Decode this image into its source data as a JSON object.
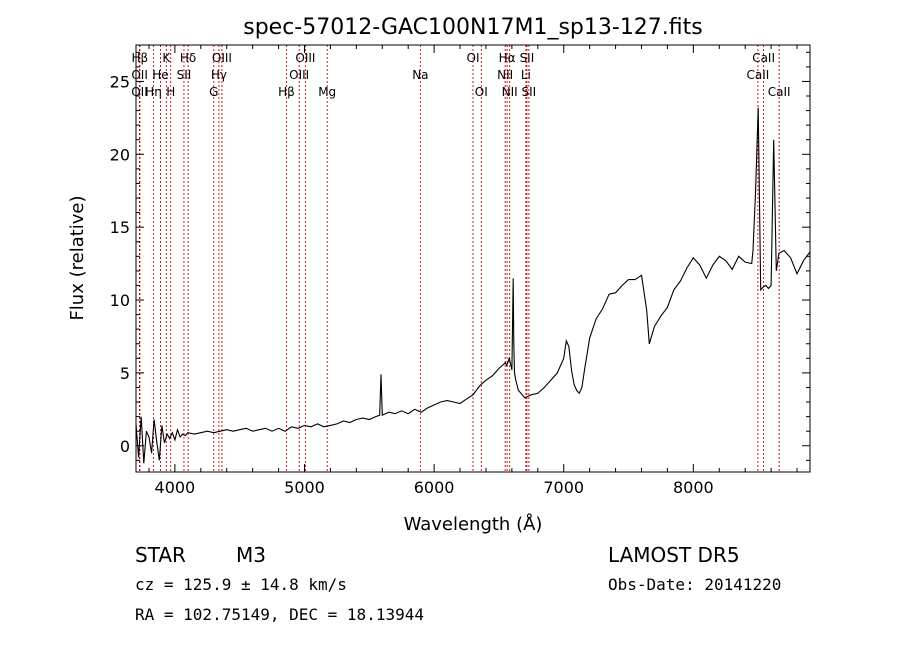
{
  "chart_data": {
    "type": "line",
    "title": "spec-57012-GAC100N17M1_sp13-127.fits",
    "xlabel": "Wavelength (Å)",
    "ylabel": "Flux (relative)",
    "xlim": [
      3700,
      8900
    ],
    "ylim": [
      -1.8,
      27.5
    ],
    "x_ticks": [
      4000,
      5000,
      6000,
      7000,
      8000
    ],
    "y_ticks": [
      0,
      5,
      10,
      15,
      20,
      25
    ],
    "grid": false,
    "series": [
      {
        "color": "#000000",
        "x": [
          3700,
          3720,
          3740,
          3760,
          3780,
          3800,
          3820,
          3840,
          3860,
          3880,
          3900,
          3920,
          3940,
          3960,
          3980,
          4000,
          4020,
          4040,
          4060,
          4080,
          4100,
          4150,
          4200,
          4250,
          4300,
          4350,
          4400,
          4450,
          4500,
          4550,
          4600,
          4650,
          4700,
          4750,
          4800,
          4850,
          4900,
          4950,
          5000,
          5050,
          5100,
          5150,
          5200,
          5250,
          5300,
          5350,
          5400,
          5450,
          5500,
          5550,
          5580,
          5590,
          5600,
          5650,
          5700,
          5750,
          5800,
          5850,
          5900,
          5950,
          6000,
          6050,
          6100,
          6150,
          6200,
          6250,
          6300,
          6350,
          6400,
          6450,
          6500,
          6550,
          6560,
          6580,
          6600,
          6610,
          6615,
          6620,
          6630,
          6650,
          6700,
          6750,
          6800,
          6850,
          6900,
          6950,
          7000,
          7020,
          7040,
          7060,
          7080,
          7100,
          7120,
          7140,
          7160,
          7200,
          7250,
          7300,
          7350,
          7400,
          7450,
          7500,
          7550,
          7600,
          7620,
          7640,
          7660,
          7700,
          7750,
          7800,
          7850,
          7900,
          7950,
          8000,
          8050,
          8100,
          8150,
          8200,
          8250,
          8300,
          8350,
          8400,
          8450,
          8460,
          8480,
          8500,
          8520,
          8540,
          8560,
          8580,
          8600,
          8620,
          8640,
          8660,
          8700,
          8750,
          8800,
          8850,
          8900
        ],
        "y": [
          1.5,
          -0.8,
          2.0,
          -1.2,
          1.0,
          0.6,
          -0.5,
          1.8,
          0.3,
          -1.0,
          1.4,
          0.2,
          0.8,
          0.5,
          0.9,
          0.4,
          1.1,
          0.6,
          0.8,
          0.7,
          0.9,
          0.8,
          0.9,
          1.0,
          0.9,
          1.0,
          1.1,
          1.0,
          1.1,
          1.2,
          1.0,
          1.1,
          1.2,
          1.0,
          1.2,
          1.0,
          1.3,
          1.2,
          1.4,
          1.3,
          1.5,
          1.3,
          1.4,
          1.5,
          1.7,
          1.6,
          1.8,
          1.9,
          1.8,
          2.0,
          2.1,
          4.9,
          2.1,
          2.3,
          2.2,
          2.4,
          2.2,
          2.5,
          2.3,
          2.6,
          2.8,
          3.0,
          3.1,
          3.0,
          2.9,
          3.2,
          3.5,
          4.1,
          4.5,
          4.8,
          5.3,
          5.7,
          5.5,
          6.0,
          5.2,
          11.5,
          7.0,
          5.0,
          4.5,
          3.8,
          3.3,
          3.5,
          3.6,
          4.0,
          4.5,
          5.0,
          6.0,
          7.2,
          6.8,
          5.2,
          4.2,
          3.8,
          3.6,
          4.0,
          5.2,
          7.4,
          8.7,
          9.4,
          10.4,
          10.5,
          11.0,
          11.4,
          11.4,
          11.7,
          10.5,
          9.3,
          7.0,
          8.2,
          8.9,
          9.5,
          10.7,
          11.3,
          12.2,
          12.9,
          12.4,
          11.5,
          12.4,
          13.0,
          12.7,
          12.1,
          13.0,
          12.6,
          12.5,
          13.4,
          17.5,
          23.2,
          10.7,
          10.9,
          11.0,
          10.8,
          11.0,
          21.0,
          12.0,
          13.2,
          13.4,
          12.9,
          11.8,
          12.7,
          13.3
        ]
      }
    ],
    "line_markers": [
      {
        "label": "Hβ",
        "lambda": 3730,
        "row": 1
      },
      {
        "label": "OII",
        "lambda": 3728,
        "row": 2
      },
      {
        "label": "OII",
        "lambda": 3727,
        "row": 3
      },
      {
        "label": "Hη",
        "lambda": 3835,
        "row": 3
      },
      {
        "label": "K",
        "lambda": 3934,
        "row": 1
      },
      {
        "label": "He",
        "lambda": 3889,
        "row": 2
      },
      {
        "label": "SII",
        "lambda": 4070,
        "row": 2
      },
      {
        "label": "H",
        "lambda": 3968,
        "row": 3
      },
      {
        "label": "Hδ",
        "lambda": 4102,
        "row": 1
      },
      {
        "label": "OIII",
        "lambda": 4363,
        "row": 1
      },
      {
        "label": "Hγ",
        "lambda": 4340,
        "row": 2
      },
      {
        "label": "G",
        "lambda": 4300,
        "row": 3
      },
      {
        "label": "OIII",
        "lambda": 5007,
        "row": 1
      },
      {
        "label": "OIII",
        "lambda": 4959,
        "row": 2
      },
      {
        "label": "Hβ",
        "lambda": 4861,
        "row": 3
      },
      {
        "label": "Mg",
        "lambda": 5175,
        "row": 3
      },
      {
        "label": "Na",
        "lambda": 5894,
        "row": 2
      },
      {
        "label": "OI",
        "lambda": 6300,
        "row": 1
      },
      {
        "label": "OI",
        "lambda": 6364,
        "row": 3
      },
      {
        "label": "Hα",
        "lambda": 6563,
        "row": 1
      },
      {
        "label": "NII",
        "lambda": 6548,
        "row": 2
      },
      {
        "label": "NII",
        "lambda": 6583,
        "row": 3
      },
      {
        "label": "SII",
        "lambda": 6716,
        "row": 1
      },
      {
        "label": "Li",
        "lambda": 6708,
        "row": 2
      },
      {
        "label": "SII",
        "lambda": 6731,
        "row": 3
      },
      {
        "label": "CaII",
        "lambda": 8542,
        "row": 1
      },
      {
        "label": "CaII",
        "lambda": 8498,
        "row": 2
      },
      {
        "label": "CaII",
        "lambda": 8662,
        "row": 3
      }
    ],
    "marker_color": "#cc0000"
  },
  "info": {
    "object_class": "STAR",
    "subclass": "M3",
    "survey": "LAMOST DR5",
    "cz": "cz = 125.9 ± 14.8 km/s",
    "obs_date": "Obs-Date: 20141220",
    "coords": "RA = 102.75149, DEC =  18.13944"
  }
}
